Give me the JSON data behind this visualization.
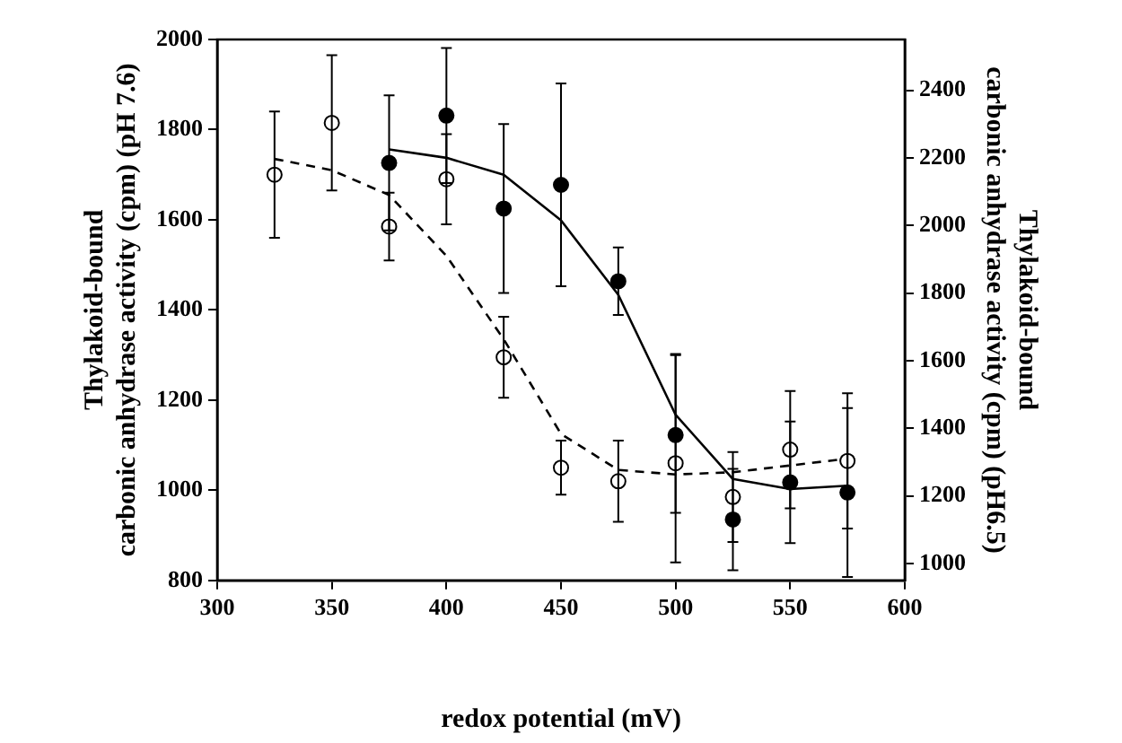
{
  "chart_data": {
    "type": "scatter",
    "xlabel": "redox potential (mV)",
    "ylabel": "Thylakoid-bound\ncarbonic anhydrase activity (cpm) (pH 7.6)",
    "y2label": "Thylakoid-bound\ncarbonic anhydrase activity (cpm) (pH6.5)",
    "x": [
      325,
      350,
      375,
      400,
      425,
      450,
      475,
      500,
      525,
      550,
      575
    ],
    "series": [
      {
        "color": "#ffffff",
        "marker": "circle",
        "values": [
          1700,
          1815,
          1585,
          1690,
          1295,
          1050,
          1020,
          1060,
          985,
          1090,
          1065
        ],
        "errors": [
          140,
          150,
          75,
          100,
          90,
          60,
          90,
          [
            840,
            1300
          ],
          100,
          130,
          150
        ]
      },
      {
        "type": "line",
        "color": "#000000",
        "line_style": "dashed",
        "marker": "none",
        "values": [
          1735,
          1710,
          1655,
          1520,
          1335,
          1125,
          1045,
          1035,
          1040,
          1055,
          1070
        ]
      },
      {
        "axis": "y2",
        "color": "#000000",
        "marker": "circle",
        "x": [
          375,
          400,
          425,
          450,
          475,
          500,
          525,
          550,
          575
        ],
        "values": [
          2185,
          2325,
          2050,
          2120,
          1835,
          1380,
          1130,
          1240,
          1210
        ],
        "errors": [
          200,
          200,
          250,
          300,
          100,
          [
            1150,
            1620
          ],
          150,
          180,
          250
        ]
      },
      {
        "type": "line",
        "axis": "y2",
        "color": "#000000",
        "line_style": "solid",
        "marker": "none",
        "x": [
          375,
          400,
          425,
          450,
          475,
          500,
          525,
          550,
          575
        ],
        "values": [
          2225,
          2200,
          2150,
          2015,
          1795,
          1440,
          1250,
          1220,
          1230
        ]
      }
    ],
    "xlim": [
      300,
      600
    ],
    "xticks": [
      300,
      350,
      400,
      450,
      500,
      550,
      600
    ],
    "ylim": [
      800,
      2000
    ],
    "yticks": [
      800,
      1000,
      1200,
      1400,
      1600,
      1800,
      2000
    ],
    "y2lim": [
      950,
      2550
    ],
    "y2ticks": [
      1000,
      1200,
      1400,
      1600,
      1800,
      2000,
      2200,
      2400
    ],
    "grid": false,
    "legend": false
  }
}
